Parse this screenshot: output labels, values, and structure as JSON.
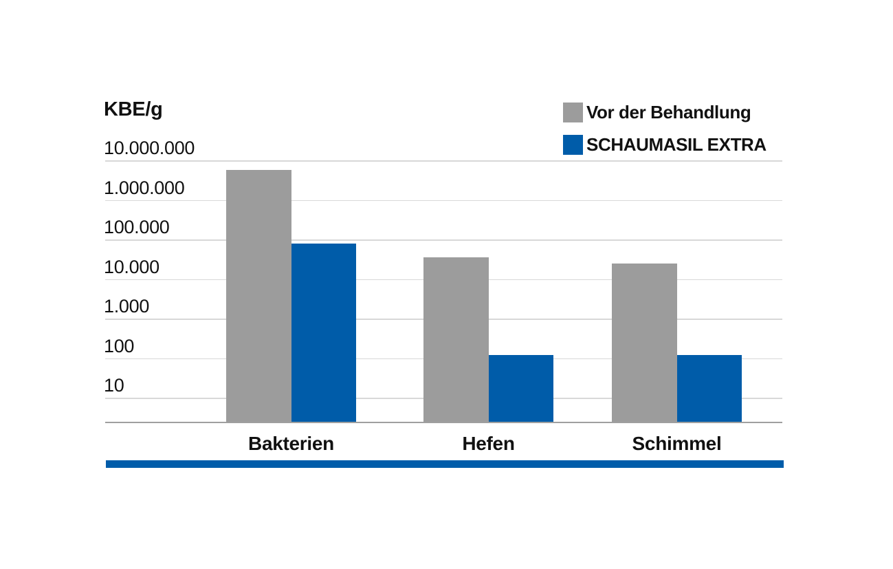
{
  "chart_data": {
    "type": "bar",
    "title": "KBE/g",
    "scale": "log10",
    "categories": [
      "Bakterien",
      "Hefen",
      "Schimmel"
    ],
    "series": [
      {
        "name": "Vor der Behandlung",
        "color": "#9C9C9C",
        "values": [
          5700000,
          35000,
          25000
        ]
      },
      {
        "name": "SCHAUMASIL EXTRA",
        "color": "#005CA9",
        "values": [
          80000,
          120,
          120
        ]
      }
    ],
    "y_tick_labels": [
      "10.000.000",
      "1.000.000",
      "100.000",
      "10.000",
      "1.000",
      "100",
      "10"
    ],
    "y_tick_values": [
      10000000,
      1000000,
      100000,
      10000,
      1000,
      100,
      10
    ],
    "ylim_top": 10000000,
    "grid": true,
    "legend_position": "top-right",
    "colors": {
      "before_treatment": "#9C9C9C",
      "schaumasil_extra": "#005CA9",
      "gridline": "#D8D8D8",
      "axis_line": "#9F9F9F",
      "text": "#111111"
    }
  },
  "footer": {
    "accent_bar_color": "#005CA9"
  }
}
